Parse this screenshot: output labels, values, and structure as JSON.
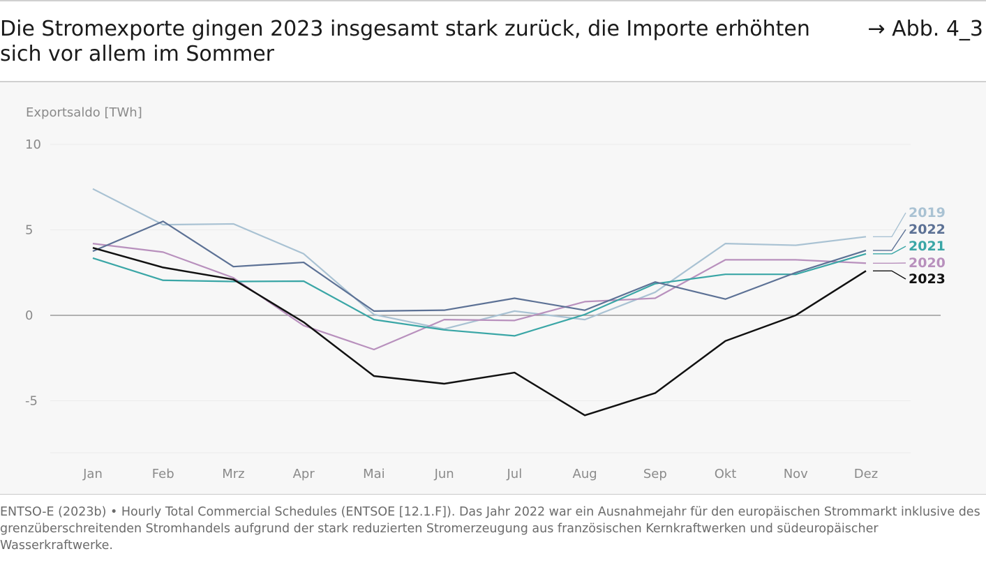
{
  "header": {
    "title": "Die Stromexporte gingen 2023 insgesamt stark zurück, die Importe erhöhten sich vor allem im Sommer",
    "figure_ref": "→ Abb. 4_3"
  },
  "source_note": "ENTSO-E (2023b) • Hourly Total Commercial Schedules (ENTSOE [12.1.F]). Das Jahr 2022 war ein Ausnahmejahr für den europäischen Strommarkt inklusive des grenzüberschreitenden Stromhandels aufgrund der stark reduzierten Stromerzeugung aus französischen Kernkraftwerken und südeuropäischer Wasserkraftwerke.",
  "chart_data": {
    "type": "line",
    "title": "Die Stromexporte gingen 2023 insgesamt stark zurück, die Importe erhöhten sich vor allem im Sommer",
    "ylabel": "Exportsaldo [TWh]",
    "xlabel": "",
    "categories": [
      "Jan",
      "Feb",
      "Mrz",
      "Apr",
      "Mai",
      "Jun",
      "Jul",
      "Aug",
      "Sep",
      "Okt",
      "Nov",
      "Dez"
    ],
    "ylim": [
      -8,
      10
    ],
    "yticks": [
      10,
      5,
      0,
      -5
    ],
    "ytick_labels": [
      "10",
      "5",
      "0",
      "-5"
    ],
    "grid": true,
    "zero_line": true,
    "legend": "right, end-of-line labels",
    "series": [
      {
        "name": "2019",
        "color": "#a9c2d3",
        "values": [
          7.4,
          5.3,
          5.35,
          3.6,
          0.05,
          -0.8,
          0.25,
          -0.25,
          1.35,
          4.2,
          4.1,
          4.6
        ]
      },
      {
        "name": "2020",
        "color": "#b890bd",
        "values": [
          4.2,
          3.7,
          2.2,
          -0.6,
          -2.0,
          -0.25,
          -0.3,
          0.8,
          1.0,
          3.25,
          3.25,
          3.05
        ]
      },
      {
        "name": "2021",
        "color": "#3aa6a6",
        "values": [
          3.35,
          2.05,
          1.98,
          2.0,
          -0.25,
          -0.85,
          -1.2,
          0.05,
          1.85,
          2.4,
          2.4,
          3.6
        ]
      },
      {
        "name": "2022",
        "color": "#5c7195",
        "values": [
          3.75,
          5.5,
          2.85,
          3.1,
          0.25,
          0.3,
          1.0,
          0.3,
          1.95,
          0.95,
          2.5,
          3.8
        ]
      },
      {
        "name": "2023",
        "color": "#111111",
        "values": [
          3.95,
          2.8,
          2.1,
          -0.4,
          -3.55,
          -4.0,
          -3.35,
          -5.85,
          -4.55,
          -1.5,
          0.0,
          2.6
        ]
      }
    ],
    "legend_order": [
      "2019",
      "2022",
      "2021",
      "2020",
      "2023"
    ]
  }
}
